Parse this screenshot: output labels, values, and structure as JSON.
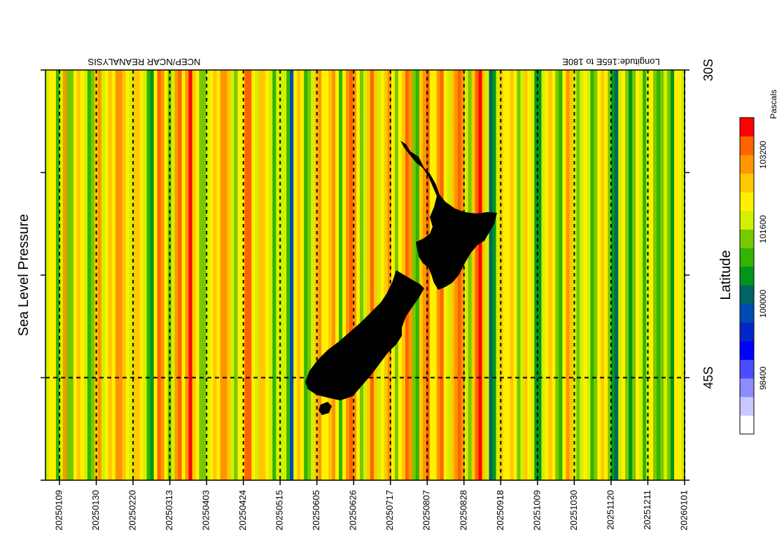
{
  "chart_data": {
    "type": "heatmap",
    "title": "Sea Level Pressure",
    "source": "NCEP/NCAR REANALYSIS",
    "subtitle": "Longitude:165E to 180E",
    "ylabel": "Latitude",
    "ylim": [
      "50S",
      "30S"
    ],
    "y_ticks": [
      {
        "label": "30S",
        "lat": -30
      },
      {
        "label": "45S",
        "lat": -45
      }
    ],
    "y_minor_ticks": [
      -35,
      -40,
      -50
    ],
    "x_start": "20250101",
    "x_end": "20260101",
    "x_ticks": [
      "20250109",
      "20250130",
      "20250220",
      "20250313",
      "20250403",
      "20250424",
      "20250515",
      "20250605",
      "20250626",
      "20250717",
      "20250807",
      "20250828",
      "20250918",
      "20251009",
      "20251030",
      "20251120",
      "20251211",
      "20260101"
    ],
    "grid": true,
    "colorbar": {
      "unit": "Pascals",
      "labels": [
        {
          "text": "98400",
          "value": 98400
        },
        {
          "text": "100000",
          "value": 100000
        },
        {
          "text": "101600",
          "value": 101600
        },
        {
          "text": "103200",
          "value": 103200
        }
      ],
      "levels": [
        97600,
        98000,
        98400,
        98800,
        99200,
        99600,
        100000,
        100400,
        100800,
        101200,
        101600,
        102000,
        102400,
        102800,
        103200
      ],
      "colors": [
        "#ffffff",
        "#c8c8ff",
        "#8c8cff",
        "#4b4bff",
        "#0000ff",
        "#0028c8",
        "#004bb4",
        "#006464",
        "#00961e",
        "#32b400",
        "#78c800",
        "#d2f000",
        "#fff000",
        "#ffc800",
        "#ff9600",
        "#ff6400",
        "#ff0000"
      ]
    },
    "column_values": [
      101200,
      101600,
      101800,
      100400,
      101400,
      102400,
      101000,
      100800,
      101800,
      102000,
      101600,
      101200,
      100600,
      101000,
      102200,
      102600,
      101400,
      101800,
      102000,
      101800,
      102400,
      102600,
      102000,
      101800,
      101400,
      102000,
      102200,
      101600,
      101200,
      100400,
      100000,
      101800,
      102800,
      102600,
      101600,
      100800,
      101200,
      102400,
      102800,
      101600,
      102600,
      103200,
      102000,
      101800,
      101000,
      100800,
      101400,
      101600,
      102000,
      101800,
      102400,
      102600,
      102000,
      101200,
      100800,
      101600,
      101800,
      102800,
      103000,
      101800,
      101200,
      102000,
      102200,
      101600,
      101400,
      100400,
      101400,
      101200,
      101400,
      100400,
      99400,
      101600,
      102000,
      101800,
      100400,
      100800,
      101400,
      102200,
      102600,
      101800,
      101600,
      102000,
      102400,
      101600,
      100600,
      101800,
      102600,
      103000,
      102600,
      101800,
      101000,
      101400,
      102000,
      102800,
      102200,
      101400,
      101600,
      102200,
      102600,
      101800,
      101000,
      101600,
      102200,
      102800,
      102400,
      101000,
      100600,
      102000,
      102600,
      103000,
      101800,
      101600,
      102400,
      102800,
      101800,
      101200,
      102000,
      102600,
      102800,
      102400,
      101400,
      101000,
      102200,
      103000,
      103200,
      102000,
      101400,
      99600,
      100200,
      101200,
      102000,
      101600,
      101800,
      102200,
      101600,
      100800,
      101400,
      102000,
      101800,
      101400,
      100200,
      100000,
      101200,
      101800,
      102000,
      101600,
      100800,
      100400,
      101600,
      102600,
      102200,
      101400,
      101000,
      101200,
      101800,
      101200,
      100600,
      100800,
      101800,
      102000,
      101600,
      101000,
      100000,
      99800,
      101400,
      101600,
      100800,
      100200,
      101000,
      101800,
      101400,
      100600,
      101200,
      101600,
      101000,
      100400,
      100800,
      101200,
      100800,
      100000,
      101600,
      101800,
      101200
    ]
  }
}
